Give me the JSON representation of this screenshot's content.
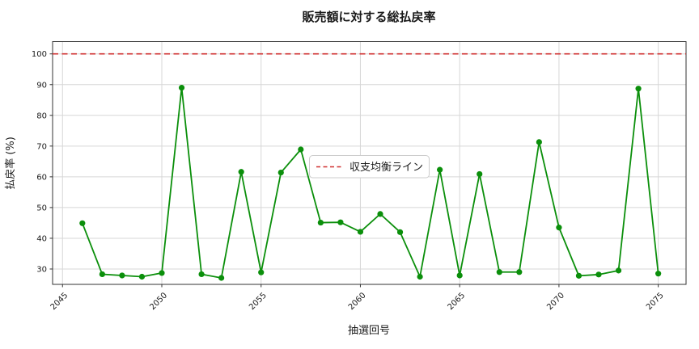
{
  "title": "販売額に対する総払戻率",
  "colors": {
    "line": "#0b8f0b",
    "marker": "#0b8f0b",
    "reference": "#d03030",
    "grid": "#d7d7d7",
    "spine": "#333333",
    "text": "#1a1a1a",
    "legend_border": "#cccccc",
    "background": "#ffffff"
  },
  "legend": {
    "label": "収支均衡ライン"
  },
  "chart_data": {
    "type": "line",
    "title": "販売額に対する総払戻率",
    "xlabel": "抽選回号",
    "ylabel": "払戻率 (%)",
    "x": [
      2046,
      2047,
      2048,
      2049,
      2050,
      2051,
      2052,
      2053,
      2054,
      2055,
      2056,
      2057,
      2058,
      2059,
      2060,
      2061,
      2062,
      2063,
      2064,
      2065,
      2066,
      2067,
      2068,
      2069,
      2070,
      2071,
      2072,
      2073,
      2074,
      2075
    ],
    "values": [
      44.9,
      28.3,
      27.9,
      27.5,
      28.7,
      89.0,
      28.3,
      27.1,
      61.6,
      28.9,
      61.4,
      68.9,
      45.1,
      45.2,
      42.1,
      47.9,
      42.0,
      27.5,
      62.3,
      27.9,
      60.9,
      29.0,
      29.0,
      71.3,
      43.5,
      27.8,
      28.2,
      29.5,
      88.7,
      28.5
    ],
    "reference_line": {
      "y": 100,
      "label": "収支均衡ライン",
      "style": "dashed"
    },
    "xticks": [
      2045,
      2050,
      2055,
      2060,
      2065,
      2070,
      2075
    ],
    "yticks": [
      30,
      40,
      50,
      60,
      70,
      80,
      90,
      100
    ],
    "xlim": [
      2044.5,
      2076.4
    ],
    "ylim": [
      25.0,
      104.0
    ],
    "grid": true,
    "legend_position": "center",
    "marker": "circle"
  }
}
